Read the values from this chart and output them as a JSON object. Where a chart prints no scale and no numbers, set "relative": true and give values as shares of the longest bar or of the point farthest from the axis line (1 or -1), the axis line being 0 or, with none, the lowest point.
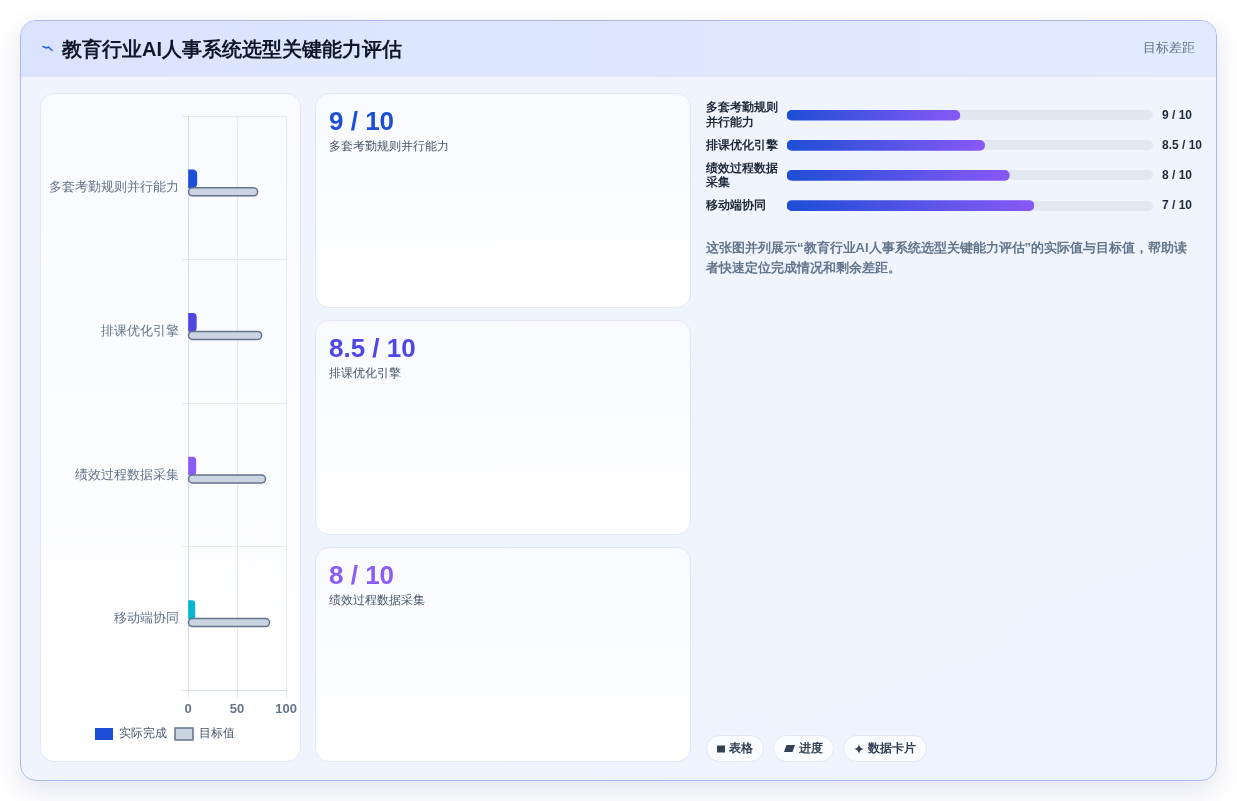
{
  "chart_data": [
    {
      "type": "bar",
      "title": "教育行业AI人事系统选型关键能力评估",
      "orientation": "horizontal",
      "categories": [
        "多套考勤规则并行能力",
        "排课优化引擎",
        "绩效过程数据采集",
        "移动端协同"
      ],
      "series": [
        {
          "name": "实际完成",
          "colors": [
            "#1d4ed8",
            "#4f46e5",
            "#8b5cf6",
            "#06b6d4"
          ],
          "values": [
            9,
            8.5,
            8,
            7
          ]
        },
        {
          "name": "目标值",
          "color": "#cbd5e1",
          "values": [
            71,
            75,
            79,
            83
          ]
        }
      ],
      "xlim": [
        0,
        100
      ],
      "xticks": [
        0,
        50,
        100
      ],
      "grid": true,
      "legend": "bottom",
      "annotations": [
        "目标差距"
      ]
    },
    {
      "type": "other",
      "colors": [
        "#1d4ed8",
        "#4f46e5",
        "#8b5cf6"
      ],
      "annotations": [
        "9 / 10",
        "多套考勤规则并行能力",
        "8.5 / 10",
        "排课优化引擎",
        "8 / 10",
        "绩效过程数据采集"
      ]
    },
    {
      "type": "bar",
      "orientation": "horizontal",
      "relative": true,
      "color": "#4f46e5",
      "categories": [
        "多套考勤规则并行能力",
        "排课优化引擎",
        "绩效过程数据采集",
        "移动端协同"
      ],
      "values": [
        0.7,
        0.8,
        0.9,
        1
      ],
      "annotations": [
        "9 / 10",
        "8.5 / 10",
        "8 / 10",
        "7 / 10",
        "这张图并列展示“教育行业AI人事系统选型关键能力评估”的实际值与目标值，帮助读者快速定位完成情况和剩余差距。",
        "表格",
        "进度",
        "数据卡片"
      ]
    }
  ]
}
